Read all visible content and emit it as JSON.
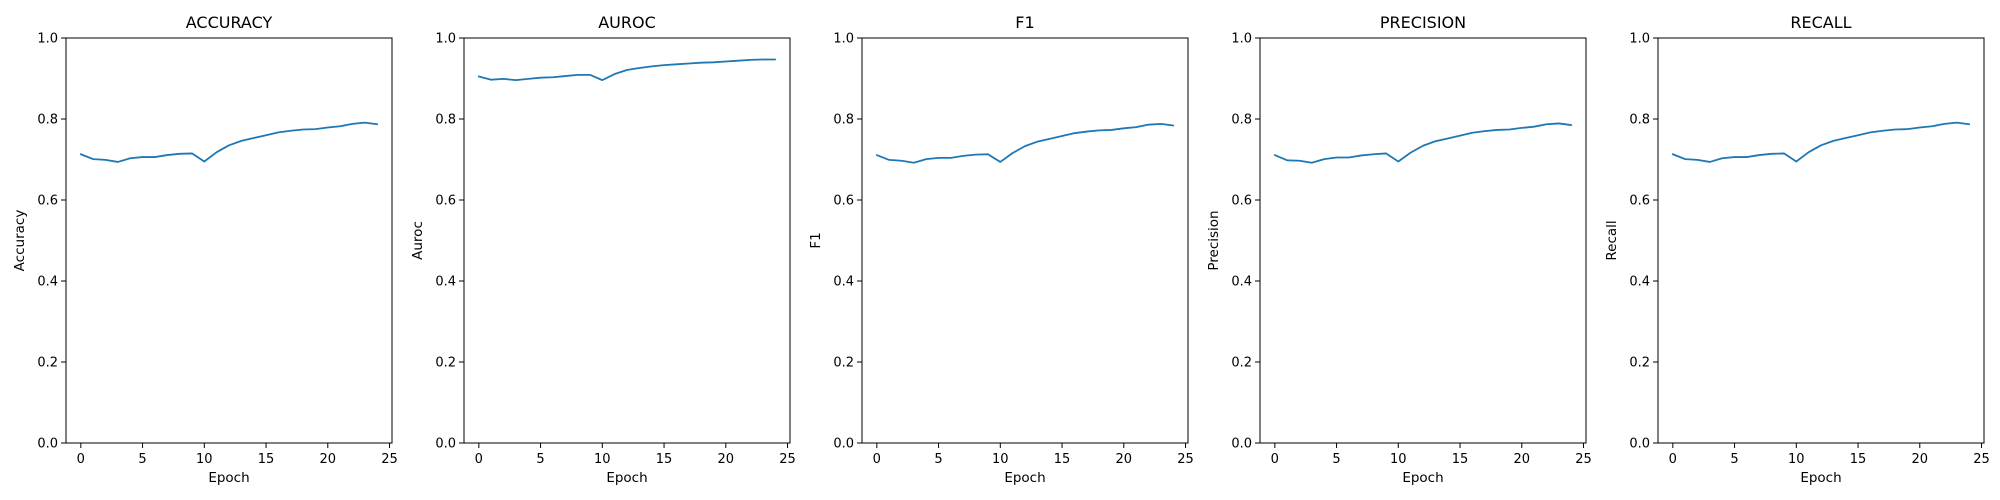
{
  "chart_data": [
    {
      "type": "line",
      "title": "ACCURACY",
      "xlabel": "Epoch",
      "ylabel": "Accuracy",
      "xlim": [
        -1.2,
        25.2
      ],
      "ylim": [
        0.0,
        1.0
      ],
      "xticks": [
        0,
        5,
        10,
        15,
        20,
        25
      ],
      "yticks": [
        0.0,
        0.2,
        0.4,
        0.6,
        0.8,
        1.0
      ],
      "grid": false,
      "series": [
        {
          "color": "#1f77b4",
          "x": [
            0,
            1,
            2,
            3,
            4,
            5,
            6,
            7,
            8,
            9,
            10,
            11,
            12,
            13,
            14,
            15,
            16,
            17,
            18,
            19,
            20,
            21,
            22,
            23,
            24
          ],
          "y": [
            0.713,
            0.701,
            0.699,
            0.694,
            0.703,
            0.706,
            0.706,
            0.711,
            0.714,
            0.715,
            0.695,
            0.718,
            0.735,
            0.746,
            0.753,
            0.76,
            0.767,
            0.771,
            0.774,
            0.775,
            0.779,
            0.782,
            0.788,
            0.791,
            0.787
          ]
        }
      ]
    },
    {
      "type": "line",
      "title": "AUROC",
      "xlabel": "Epoch",
      "ylabel": "Auroc",
      "xlim": [
        -1.2,
        25.2
      ],
      "ylim": [
        0.0,
        1.0
      ],
      "xticks": [
        0,
        5,
        10,
        15,
        20,
        25
      ],
      "yticks": [
        0.0,
        0.2,
        0.4,
        0.6,
        0.8,
        1.0
      ],
      "grid": false,
      "series": [
        {
          "color": "#1f77b4",
          "x": [
            0,
            1,
            2,
            3,
            4,
            5,
            6,
            7,
            8,
            9,
            10,
            11,
            12,
            13,
            14,
            15,
            16,
            17,
            18,
            19,
            20,
            21,
            22,
            23,
            24
          ],
          "y": [
            0.905,
            0.897,
            0.899,
            0.896,
            0.899,
            0.902,
            0.903,
            0.906,
            0.909,
            0.909,
            0.896,
            0.911,
            0.921,
            0.926,
            0.93,
            0.933,
            0.935,
            0.937,
            0.939,
            0.94,
            0.942,
            0.944,
            0.946,
            0.947,
            0.947
          ]
        }
      ]
    },
    {
      "type": "line",
      "title": "F1",
      "xlabel": "Epoch",
      "ylabel": "F1",
      "xlim": [
        -1.2,
        25.2
      ],
      "ylim": [
        0.0,
        1.0
      ],
      "xticks": [
        0,
        5,
        10,
        15,
        20,
        25
      ],
      "yticks": [
        0.0,
        0.2,
        0.4,
        0.6,
        0.8,
        1.0
      ],
      "grid": false,
      "series": [
        {
          "color": "#1f77b4",
          "x": [
            0,
            1,
            2,
            3,
            4,
            5,
            6,
            7,
            8,
            9,
            10,
            11,
            12,
            13,
            14,
            15,
            16,
            17,
            18,
            19,
            20,
            21,
            22,
            23,
            24
          ],
          "y": [
            0.711,
            0.699,
            0.697,
            0.692,
            0.701,
            0.704,
            0.704,
            0.709,
            0.712,
            0.713,
            0.694,
            0.716,
            0.733,
            0.744,
            0.751,
            0.758,
            0.765,
            0.769,
            0.772,
            0.773,
            0.777,
            0.78,
            0.786,
            0.788,
            0.784
          ]
        }
      ]
    },
    {
      "type": "line",
      "title": "PRECISION",
      "xlabel": "Epoch",
      "ylabel": "Precision",
      "xlim": [
        -1.2,
        25.2
      ],
      "ylim": [
        0.0,
        1.0
      ],
      "xticks": [
        0,
        5,
        10,
        15,
        20,
        25
      ],
      "yticks": [
        0.0,
        0.2,
        0.4,
        0.6,
        0.8,
        1.0
      ],
      "grid": false,
      "series": [
        {
          "color": "#1f77b4",
          "x": [
            0,
            1,
            2,
            3,
            4,
            5,
            6,
            7,
            8,
            9,
            10,
            11,
            12,
            13,
            14,
            15,
            16,
            17,
            18,
            19,
            20,
            21,
            22,
            23,
            24
          ],
          "y": [
            0.711,
            0.698,
            0.697,
            0.692,
            0.701,
            0.705,
            0.705,
            0.71,
            0.713,
            0.715,
            0.695,
            0.717,
            0.734,
            0.745,
            0.752,
            0.759,
            0.766,
            0.77,
            0.773,
            0.774,
            0.778,
            0.781,
            0.787,
            0.789,
            0.785
          ]
        }
      ]
    },
    {
      "type": "line",
      "title": "RECALL",
      "xlabel": "Epoch",
      "ylabel": "Recall",
      "xlim": [
        -1.2,
        25.2
      ],
      "ylim": [
        0.0,
        1.0
      ],
      "xticks": [
        0,
        5,
        10,
        15,
        20,
        25
      ],
      "yticks": [
        0.0,
        0.2,
        0.4,
        0.6,
        0.8,
        1.0
      ],
      "grid": false,
      "series": [
        {
          "color": "#1f77b4",
          "x": [
            0,
            1,
            2,
            3,
            4,
            5,
            6,
            7,
            8,
            9,
            10,
            11,
            12,
            13,
            14,
            15,
            16,
            17,
            18,
            19,
            20,
            21,
            22,
            23,
            24
          ],
          "y": [
            0.713,
            0.701,
            0.699,
            0.694,
            0.703,
            0.706,
            0.706,
            0.711,
            0.714,
            0.715,
            0.695,
            0.718,
            0.735,
            0.746,
            0.753,
            0.76,
            0.767,
            0.771,
            0.774,
            0.775,
            0.779,
            0.782,
            0.788,
            0.791,
            0.787
          ]
        }
      ]
    }
  ]
}
